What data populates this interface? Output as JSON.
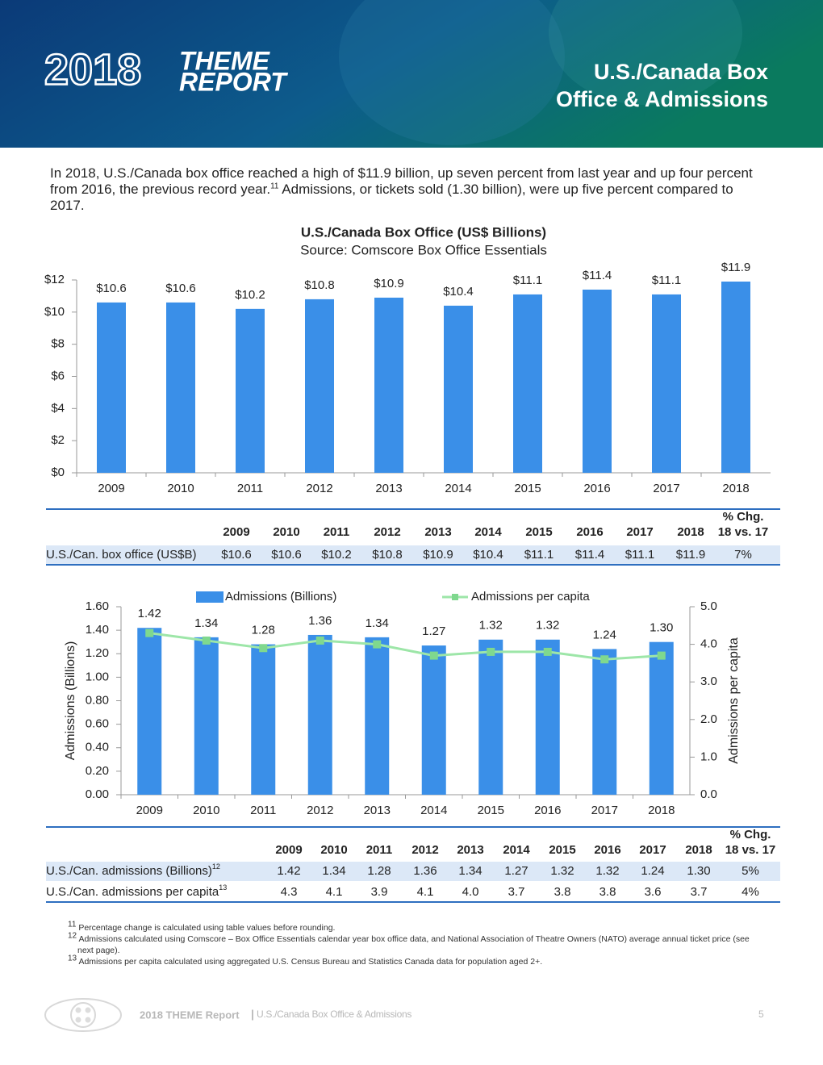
{
  "header": {
    "year": "2018",
    "brand_lines": [
      "THEME",
      "REPORT"
    ],
    "title_lines": [
      "U.S./Canada Box",
      "Office & Admissions"
    ]
  },
  "intro": {
    "text_before": "In 2018, U.S./Canada box office reached a high of $11.9 billion, up seven percent from last year and up four percent from 2016, the previous record year.",
    "ref": "11",
    "text_after": "Admissions, or tickets sold (1.30 billion), were up five percent compared to 2017."
  },
  "chart_data": [
    {
      "type": "bar",
      "title": "U.S./Canada Box Office (US$ Billions)",
      "subtitle": "Source: Comscore Box Office Essentials",
      "categories": [
        "2009",
        "2010",
        "2011",
        "2012",
        "2013",
        "2014",
        "2015",
        "2016",
        "2017",
        "2018"
      ],
      "values": [
        10.6,
        10.6,
        10.2,
        10.8,
        10.9,
        10.4,
        11.1,
        11.4,
        11.1,
        11.9
      ],
      "value_labels": [
        "$10.6",
        "$10.6",
        "$10.2",
        "$10.8",
        "$10.9",
        "$10.4",
        "$11.1",
        "$11.4",
        "$11.1",
        "$11.9"
      ],
      "color": "#3a8fe8",
      "ylim": [
        0,
        12
      ],
      "yticks": [
        {
          "value": 0,
          "label": "$0"
        },
        {
          "value": 2,
          "label": "$2"
        },
        {
          "value": 4,
          "label": "$4"
        },
        {
          "value": 6,
          "label": "$6"
        },
        {
          "value": 8,
          "label": "$8"
        },
        {
          "value": 10,
          "label": "$10"
        },
        {
          "value": 12,
          "label": "$12"
        }
      ],
      "grid": false
    },
    {
      "type": "bar",
      "categories": [
        "2009",
        "2010",
        "2011",
        "2012",
        "2013",
        "2014",
        "2015",
        "2016",
        "2017",
        "2018"
      ],
      "series": [
        {
          "name": "Admissions (Billions)",
          "color": "#3a8fe8",
          "values": [
            1.42,
            1.34,
            1.28,
            1.36,
            1.34,
            1.27,
            1.32,
            1.32,
            1.24,
            1.3
          ],
          "value_labels": [
            "1.42",
            "1.34",
            "1.28",
            "1.36",
            "1.34",
            "1.27",
            "1.32",
            "1.32",
            "1.24",
            "1.30"
          ]
        },
        {
          "name": "Admissions per capita",
          "type": "line",
          "axis": "y2",
          "color": "#9de6a8",
          "values": [
            4.3,
            4.1,
            3.9,
            4.1,
            4.0,
            3.7,
            3.8,
            3.8,
            3.6,
            3.7
          ]
        }
      ],
      "ylabel": "Admissions (Billions)",
      "y2label": "Admissions per capita",
      "ylim": [
        0,
        1.6
      ],
      "yticks": [
        {
          "value": 0,
          "label": "0.00"
        },
        {
          "value": 0.2,
          "label": "0.20"
        },
        {
          "value": 0.4,
          "label": "0.40"
        },
        {
          "value": 0.6,
          "label": "0.60"
        },
        {
          "value": 0.8,
          "label": "0.80"
        },
        {
          "value": 1,
          "label": "1.00"
        },
        {
          "value": 1.2,
          "label": "1.20"
        },
        {
          "value": 1.4,
          "label": "1.40"
        },
        {
          "value": 1.6,
          "label": "1.60"
        }
      ],
      "y2lim": [
        0,
        5
      ],
      "y2ticks": [
        {
          "value": 0,
          "label": "0.0"
        },
        {
          "value": 1,
          "label": "1.0"
        },
        {
          "value": 2,
          "label": "2.0"
        },
        {
          "value": 3,
          "label": "3.0"
        },
        {
          "value": 4,
          "label": "4.0"
        },
        {
          "value": 5,
          "label": "5.0"
        }
      ],
      "grid": false,
      "legend": "top"
    }
  ],
  "tables": [
    {
      "columns": [
        "2009",
        "2010",
        "2011",
        "2012",
        "2013",
        "2014",
        "2015",
        "2016",
        "2017",
        "2018"
      ],
      "change_header": [
        "% Chg.",
        "18 vs. 17"
      ],
      "rows": [
        {
          "label": "U.S./Can. box office (US$B)",
          "cells": [
            "$10.6",
            "$10.6",
            "$10.2",
            "$10.8",
            "$10.9",
            "$10.4",
            "$11.1",
            "$11.4",
            "$11.1",
            "$11.9"
          ],
          "change": "7%"
        }
      ]
    },
    {
      "columns": [
        "2009",
        "2010",
        "2011",
        "2012",
        "2013",
        "2014",
        "2015",
        "2016",
        "2017",
        "2018"
      ],
      "change_header": [
        "% Chg.",
        "18 vs. 17"
      ],
      "rows": [
        {
          "label": "U.S./Can. admissions (Billions)",
          "ref": "12",
          "cells": [
            "1.42",
            "1.34",
            "1.28",
            "1.36",
            "1.34",
            "1.27",
            "1.32",
            "1.32",
            "1.24",
            "1.30"
          ],
          "change": "5%"
        },
        {
          "label": "U.S./Can. admissions per capita",
          "ref": "13",
          "cells": [
            "4.3",
            "4.1",
            "3.9",
            "4.1",
            "4.0",
            "3.7",
            "3.8",
            "3.8",
            "3.6",
            "3.7"
          ],
          "change": "4%"
        }
      ]
    }
  ],
  "footnotes": [
    {
      "ref": "11",
      "text": "Percentage change is calculated using table values before rounding."
    },
    {
      "ref": "12",
      "text": "Admissions calculated using Comscore – Box Office Essentials calendar year box office data, and National Association of Theatre Owners (NATO) average annual ticket price (see next page)."
    },
    {
      "ref": "13",
      "text": "Admissions per capita calculated using aggregated U.S. Census Bureau and Statistics Canada data for population aged 2+."
    }
  ],
  "footer": {
    "report": "2018 THEME Report",
    "separator": "|",
    "section": "U.S./Canada Box Office & Admissions",
    "page": "5"
  }
}
